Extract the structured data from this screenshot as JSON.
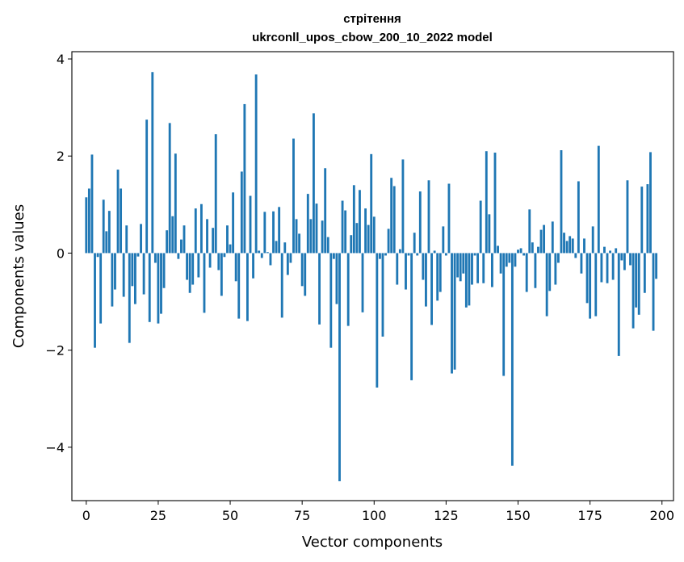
{
  "chart_data": {
    "type": "bar",
    "title_line1": "стрітення",
    "title_line2": "ukrconll_upos_cbow_200_10_2022 model",
    "xlabel": "Vector components",
    "ylabel": "Components values",
    "xlim": [
      -5,
      204
    ],
    "ylim": [
      -5.1,
      4.15
    ],
    "xticks": [
      0,
      25,
      50,
      75,
      100,
      125,
      150,
      175,
      200
    ],
    "xtick_labels": [
      "0",
      "25",
      "50",
      "75",
      "100",
      "125",
      "150",
      "175",
      "200"
    ],
    "yticks": [
      4,
      2,
      0,
      -2,
      -4
    ],
    "ytick_labels": [
      "4",
      "2",
      "0",
      "−2",
      "−4"
    ],
    "bar_color": "#1f77b4",
    "values": [
      1.15,
      1.33,
      2.03,
      -1.95,
      -0.08,
      -1.45,
      1.1,
      0.45,
      0.87,
      -1.1,
      -0.75,
      1.72,
      1.33,
      -0.9,
      0.57,
      -1.85,
      -0.68,
      -1.05,
      -0.07,
      0.6,
      -0.85,
      2.75,
      -1.42,
      3.73,
      -0.2,
      -1.45,
      -1.25,
      -0.72,
      0.47,
      2.68,
      0.76,
      2.05,
      -0.12,
      0.28,
      0.57,
      -0.55,
      -0.82,
      -0.65,
      0.92,
      -0.5,
      1.01,
      -1.23,
      0.7,
      -0.3,
      0.52,
      2.45,
      -0.35,
      -0.88,
      -0.08,
      0.57,
      0.18,
      1.25,
      -0.58,
      -1.35,
      1.68,
      3.07,
      -1.4,
      1.18,
      -0.52,
      3.68,
      0.05,
      -0.1,
      0.85,
      0.02,
      -0.25,
      0.86,
      0.25,
      0.95,
      -1.33,
      0.22,
      -0.45,
      -0.2,
      2.36,
      0.7,
      0.4,
      -0.68,
      -0.88,
      1.22,
      0.7,
      2.88,
      1.02,
      -1.47,
      0.67,
      1.75,
      0.33,
      -1.95,
      -0.12,
      -1.05,
      -4.7,
      1.08,
      0.88,
      -1.5,
      0.37,
      1.4,
      0.62,
      1.3,
      -1.22,
      0.92,
      0.58,
      2.04,
      0.75,
      -2.77,
      -0.12,
      -1.72,
      -0.05,
      0.5,
      1.55,
      1.38,
      -0.65,
      0.08,
      1.93,
      -0.75,
      -0.05,
      -2.62,
      0.42,
      -0.05,
      1.27,
      -0.55,
      -1.1,
      1.5,
      -1.48,
      0.05,
      -0.98,
      -0.8,
      0.55,
      -0.05,
      1.43,
      -2.48,
      -2.4,
      -0.5,
      -0.58,
      -0.42,
      -1.12,
      -1.08,
      -0.65,
      -0.05,
      -0.62,
      1.08,
      -0.62,
      2.1,
      0.8,
      -0.7,
      2.07,
      0.15,
      -0.42,
      -2.53,
      -0.28,
      -0.2,
      -4.38,
      -0.28,
      0.07,
      0.1,
      -0.05,
      -0.8,
      0.9,
      0.22,
      -0.72,
      0.13,
      0.48,
      0.58,
      -1.3,
      -0.78,
      0.65,
      -0.65,
      -0.2,
      2.12,
      0.42,
      0.25,
      0.35,
      0.3,
      -0.1,
      1.48,
      -0.42,
      0.3,
      -1.03,
      -1.35,
      0.55,
      -1.3,
      2.21,
      -0.6,
      0.13,
      -0.62,
      0.05,
      -0.55,
      0.1,
      -2.12,
      -0.15,
      -0.35,
      1.5,
      -0.25,
      -1.55,
      -1.12,
      -1.27,
      1.37,
      -0.82,
      1.42,
      2.08,
      -1.6,
      -0.53
    ]
  }
}
